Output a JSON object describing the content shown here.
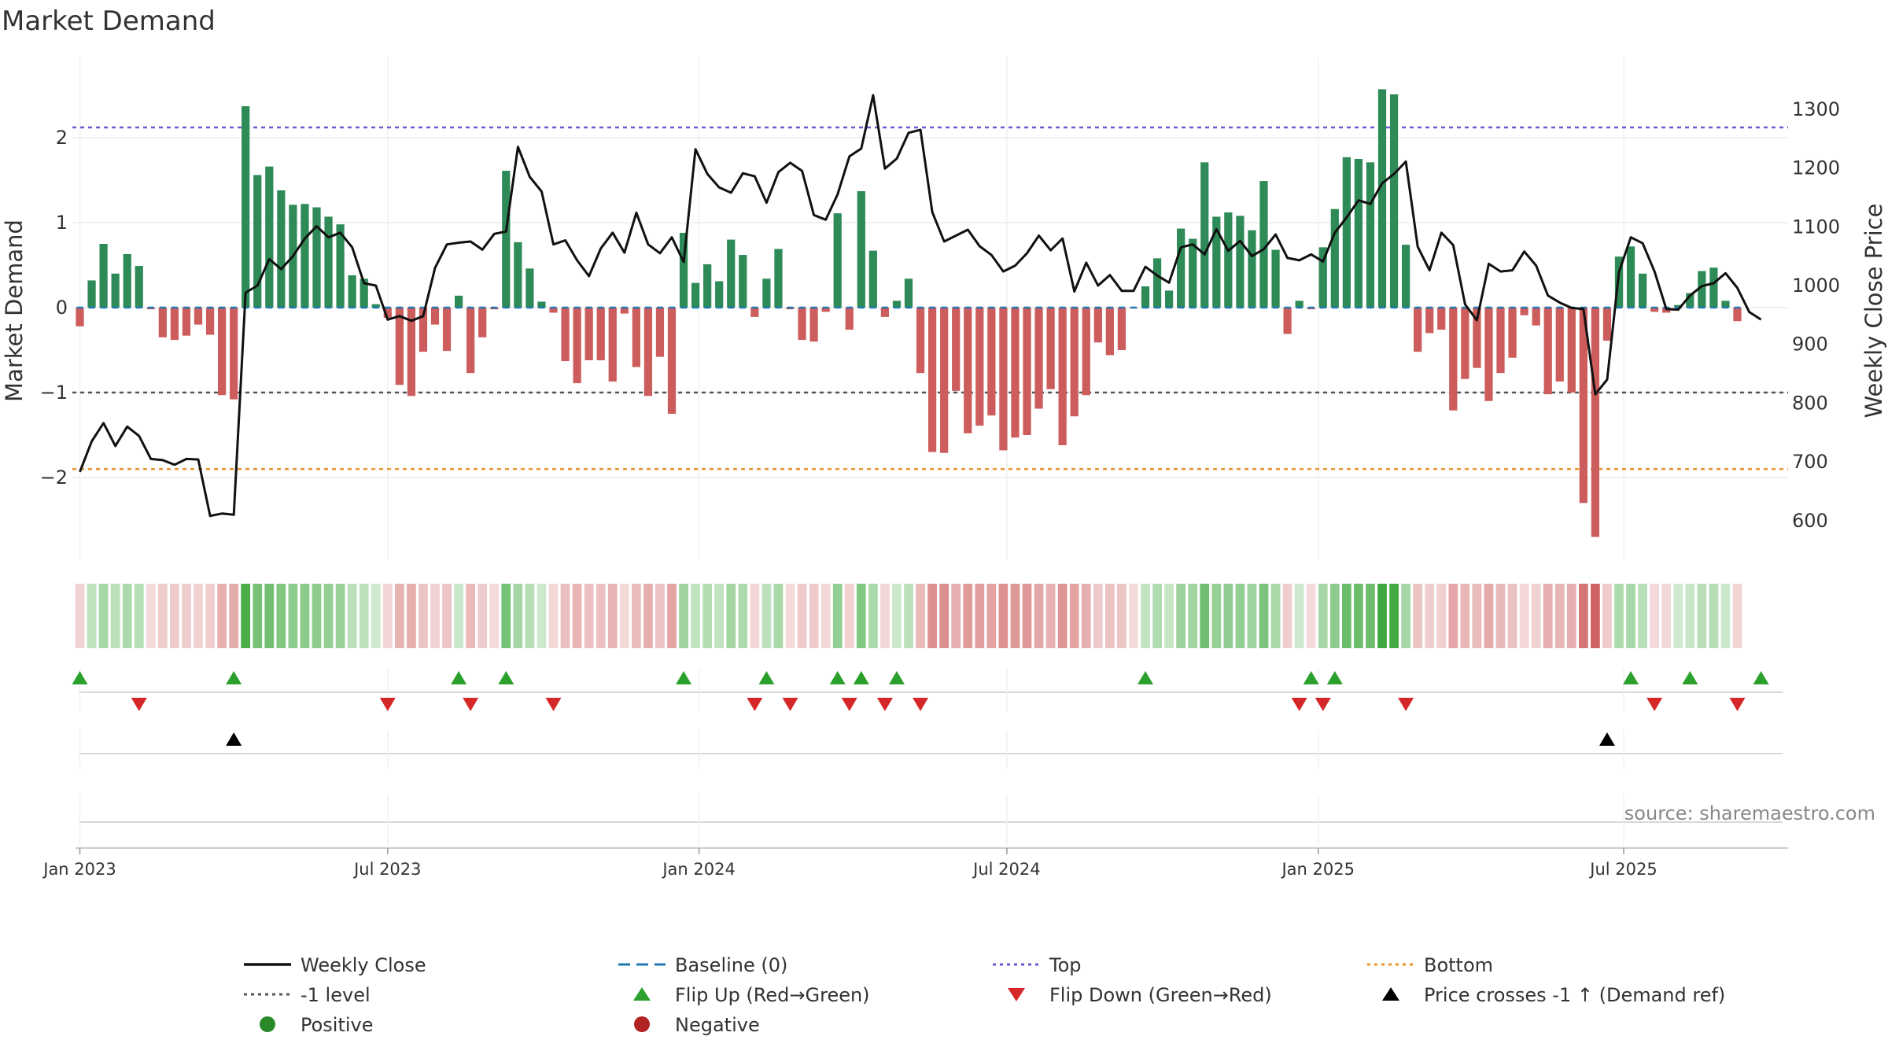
{
  "chart_data": {
    "type": "bar",
    "title": "Market Demand",
    "ylabel_left": "Market Demand",
    "ylabel_right": "Weekly Close Price",
    "source": "source: sharemaestro.com",
    "ylim_left": [
      -3.0,
      2.9
    ],
    "ylim_right": [
      540,
      1350
    ],
    "yticks_left": [
      {
        "v": 2,
        "label": "2"
      },
      {
        "v": 1,
        "label": "1"
      },
      {
        "v": 0,
        "label": "0"
      },
      {
        "v": -1,
        "label": "−1"
      },
      {
        "v": -2,
        "label": "−2"
      }
    ],
    "yticks_right": [
      {
        "v": 1300,
        "label": "1300"
      },
      {
        "v": 1200,
        "label": "1200"
      },
      {
        "v": 1100,
        "label": "1100"
      },
      {
        "v": 1000,
        "label": "1000"
      },
      {
        "v": 900,
        "label": "900"
      },
      {
        "v": 800,
        "label": "800"
      },
      {
        "v": 700,
        "label": "700"
      },
      {
        "v": 600,
        "label": "600"
      }
    ],
    "x_start_week_offset": -0.1,
    "xticks": [
      {
        "week": 0,
        "label": "Jan 2023"
      },
      {
        "week": 26,
        "label": "Jul 2023"
      },
      {
        "week": 52.3,
        "label": "Jan 2024"
      },
      {
        "week": 78.3,
        "label": "Jul 2024"
      },
      {
        "week": 104.6,
        "label": "Jan 2025"
      },
      {
        "week": 130.4,
        "label": "Jul 2025"
      }
    ],
    "levels": {
      "top": 2.12,
      "minus_one": -1.0,
      "bottom": -1.9,
      "baseline": 0
    },
    "demand": [
      -0.22,
      0.32,
      0.75,
      0.4,
      0.63,
      0.49,
      -0.02,
      -0.35,
      -0.38,
      -0.33,
      -0.2,
      -0.32,
      -1.03,
      -1.08,
      2.37,
      1.56,
      1.66,
      1.38,
      1.21,
      1.22,
      1.18,
      1.07,
      0.98,
      0.38,
      0.34,
      0.04,
      -0.12,
      -0.91,
      -1.04,
      -0.52,
      -0.2,
      -0.51,
      0.14,
      -0.77,
      -0.35,
      -0.02,
      1.61,
      0.77,
      0.46,
      0.07,
      -0.06,
      -0.63,
      -0.89,
      -0.62,
      -0.62,
      -0.87,
      -0.07,
      -0.7,
      -1.04,
      -0.58,
      -1.25,
      0.88,
      0.29,
      0.51,
      0.31,
      0.8,
      0.62,
      -0.11,
      0.34,
      0.69,
      -0.02,
      -0.38,
      -0.4,
      -0.05,
      1.11,
      -0.26,
      1.37,
      0.67,
      -0.11,
      0.08,
      0.34,
      -0.77,
      -1.7,
      -1.71,
      -0.98,
      -1.48,
      -1.39,
      -1.27,
      -1.68,
      -1.53,
      -1.5,
      -1.19,
      -0.96,
      -1.62,
      -1.28,
      -1.03,
      -0.41,
      -0.56,
      -0.5,
      -0.01,
      0.25,
      0.58,
      0.2,
      0.93,
      0.81,
      1.71,
      1.07,
      1.12,
      1.08,
      0.91,
      1.49,
      0.68,
      -0.31,
      0.08,
      -0.02,
      0.71,
      1.16,
      1.77,
      1.75,
      1.71,
      2.57,
      2.51,
      0.74,
      -0.52,
      -0.3,
      -0.26,
      -1.21,
      -0.84,
      -0.71,
      -1.1,
      -0.77,
      -0.59,
      -0.09,
      -0.21,
      -1.02,
      -0.87,
      -1.0,
      -2.3,
      -2.7,
      -0.39,
      0.6,
      0.72,
      0.4,
      -0.05,
      -0.06,
      0.03,
      0.17,
      0.43,
      0.47,
      0.08,
      -0.16
    ],
    "price": [
      683,
      735,
      766,
      727,
      760,
      744,
      705,
      703,
      695,
      705,
      704,
      608,
      612,
      610,
      988,
      1000,
      1045,
      1028,
      1050,
      1080,
      1101,
      1082,
      1090,
      1065,
      1004,
      1000,
      942,
      948,
      940,
      948,
      1030,
      1070,
      1073,
      1075,
      1061,
      1088,
      1092,
      1236,
      1185,
      1160,
      1070,
      1077,
      1043,
      1016,
      1063,
      1090,
      1056,
      1124,
      1070,
      1055,
      1082,
      1040,
      1232,
      1190,
      1167,
      1158,
      1191,
      1186,
      1141,
      1193,
      1209,
      1195,
      1120,
      1112,
      1155,
      1220,
      1233,
      1324,
      1199,
      1216,
      1260,
      1265,
      1125,
      1075,
      1085,
      1095,
      1067,
      1052,
      1024,
      1034,
      1055,
      1085,
      1060,
      1080,
      990,
      1039,
      1000,
      1018,
      991,
      991,
      1032,
      1017,
      1005,
      1065,
      1070,
      1053,
      1096,
      1059,
      1076,
      1050,
      1062,
      1087,
      1047,
      1043,
      1053,
      1041,
      1090,
      1116,
      1145,
      1139,
      1174,
      1190,
      1211,
      1066,
      1026,
      1090,
      1069,
      968,
      941,
      1037,
      1024,
      1026,
      1058,
      1034,
      983,
      971,
      962,
      960,
      815,
      840,
      1023,
      1082,
      1072,
      1024,
      960,
      959,
      983,
      999,
      1004,
      1021,
      996,
      955,
      942
    ],
    "flip_up_weeks": [
      0,
      13,
      32,
      36,
      51,
      58,
      64,
      66,
      69,
      90,
      104,
      106,
      131,
      136,
      142
    ],
    "flip_down_weeks": [
      5,
      26,
      33,
      40,
      57,
      60,
      65,
      68,
      71,
      103,
      105,
      112,
      133,
      140
    ],
    "price_cross_weeks": [
      13,
      129
    ],
    "legend": [
      {
        "name": "Weekly Close",
        "icon": "line-icon"
      },
      {
        "name": "Baseline (0)",
        "icon": "dashed-line-icon"
      },
      {
        "name": "Top",
        "icon": "dotted-line-icon"
      },
      {
        "name": "Bottom",
        "icon": "dotted-line-icon"
      },
      {
        "name": "-1 level",
        "icon": "dotted-line-icon"
      },
      {
        "name": "Flip Up (Red→Green)",
        "icon": "triangle-up-icon"
      },
      {
        "name": "Flip Down (Green→Red)",
        "icon": "triangle-down-icon"
      },
      {
        "name": "Price crosses -1 ↑ (Demand ref)",
        "icon": "triangle-up-icon"
      },
      {
        "name": "Positive",
        "icon": "circle-icon"
      },
      {
        "name": "Negative",
        "icon": "circle-icon"
      }
    ],
    "colors": {
      "positive": "#2e8b57",
      "negative": "#cd5c5c",
      "price": "#111111",
      "baseline": "#1f77b4",
      "top": "#6a5acd",
      "minus_one": "#555555",
      "bottom": "#e8952a",
      "flip_up": "#2ca02c",
      "flip_down": "#d62728",
      "cross": "#000000",
      "legend_positive": "#2a8a2a",
      "legend_negative": "#b22222"
    }
  }
}
